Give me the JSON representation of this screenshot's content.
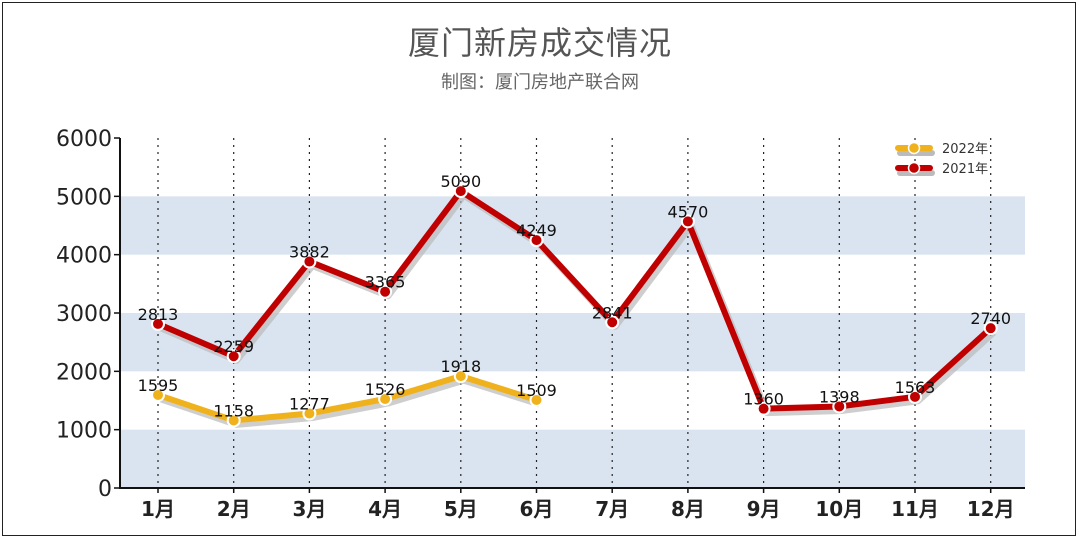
{
  "chart_data": {
    "type": "line",
    "title": "厦门新房成交情况",
    "subtitle": "制图：厦门房地产联合网",
    "categories": [
      "1月",
      "2月",
      "3月",
      "4月",
      "5月",
      "6月",
      "7月",
      "8月",
      "9月",
      "10月",
      "11月",
      "12月"
    ],
    "series": [
      {
        "name": "2022年",
        "color": "#F0B21C",
        "values": [
          1595,
          1158,
          1277,
          1526,
          1918,
          1509,
          null,
          null,
          null,
          null,
          null,
          null
        ]
      },
      {
        "name": "2021年",
        "color": "#C00000",
        "values": [
          2813,
          2259,
          3882,
          3365,
          5090,
          4249,
          2841,
          4570,
          1360,
          1398,
          1563,
          2740
        ]
      }
    ],
    "yticks": [
      "0",
      "1000",
      "2000",
      "3000",
      "4000",
      "5000",
      "6000"
    ],
    "ylim": [
      0,
      6000
    ],
    "legend": "top-right",
    "band_color": "#D9E4F0",
    "grid": "vertical-dotted"
  }
}
